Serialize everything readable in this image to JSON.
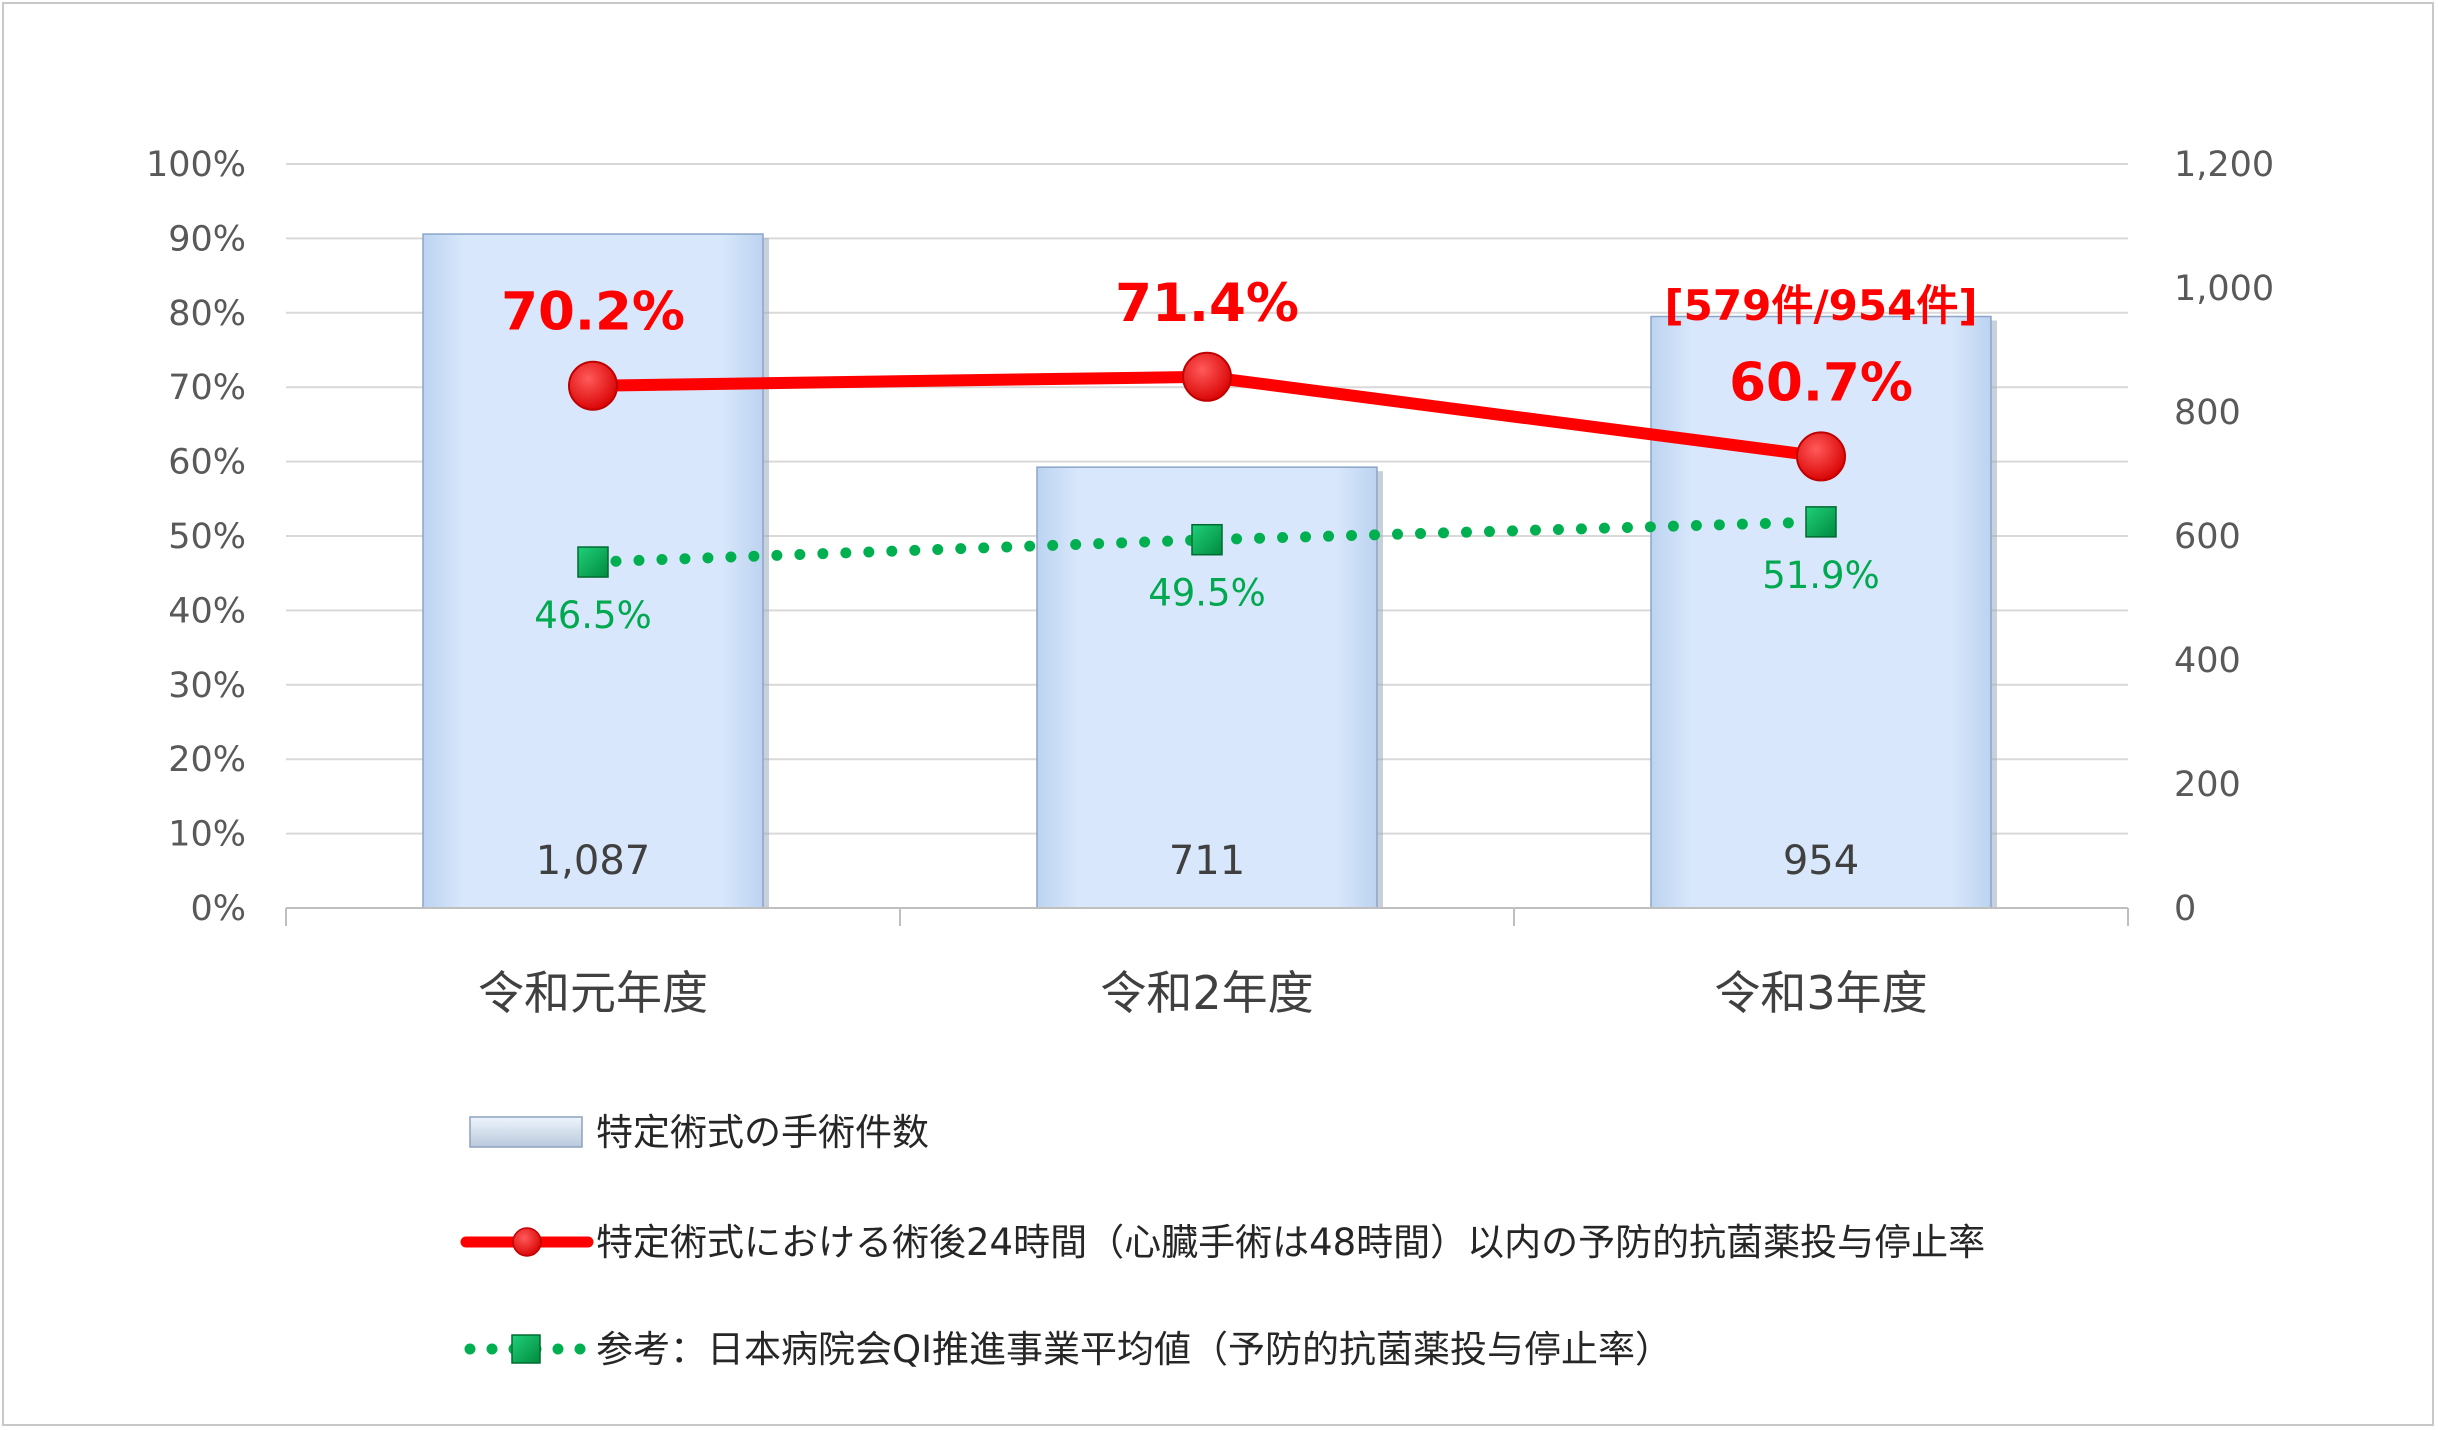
{
  "chart_data": {
    "type": "bar+line",
    "categories": [
      "令和元年度",
      "令和2年度",
      "令和3年度"
    ],
    "y_left": {
      "min": 0,
      "max": 100,
      "step": 10,
      "suffix": "%",
      "ticks": [
        "0%",
        "10%",
        "20%",
        "30%",
        "40%",
        "50%",
        "60%",
        "70%",
        "80%",
        "90%",
        "100%"
      ]
    },
    "y_right": {
      "min": 0,
      "max": 1200,
      "step": 200,
      "ticks": [
        "0",
        "200",
        "400",
        "600",
        "800",
        "1,000",
        "1,200"
      ]
    },
    "grid": true,
    "legend_position": "bottom",
    "series": [
      {
        "name": "特定術式の手術件数",
        "type": "bar",
        "axis": "right",
        "values": [
          1087,
          711,
          954
        ],
        "labels": [
          "1,087",
          "711",
          "954"
        ]
      },
      {
        "name": "特定術式における術後24時間（心臓手術は48時間）以内の予防的抗菌薬投与停止率",
        "type": "line",
        "axis": "left",
        "values": [
          70.2,
          71.4,
          60.7
        ],
        "labels": [
          "70.2%",
          "71.4%",
          "60.7%"
        ]
      },
      {
        "name": "参考：日本病院会QI推進事業平均値（予防的抗菌薬投与停止率）",
        "type": "line-dotted",
        "axis": "left",
        "values": [
          46.5,
          49.5,
          51.9
        ],
        "labels": [
          "46.5%",
          "49.5%",
          "51.9%"
        ]
      }
    ],
    "annotations": [
      {
        "category": "令和3年度",
        "text": "[579件/954件]"
      }
    ]
  },
  "colors": {
    "bar": "#d6e6fb",
    "bar_edge": "#8aa5c8",
    "red": "#ff0000",
    "green": "#00b050",
    "grid": "#d9d9d9"
  }
}
